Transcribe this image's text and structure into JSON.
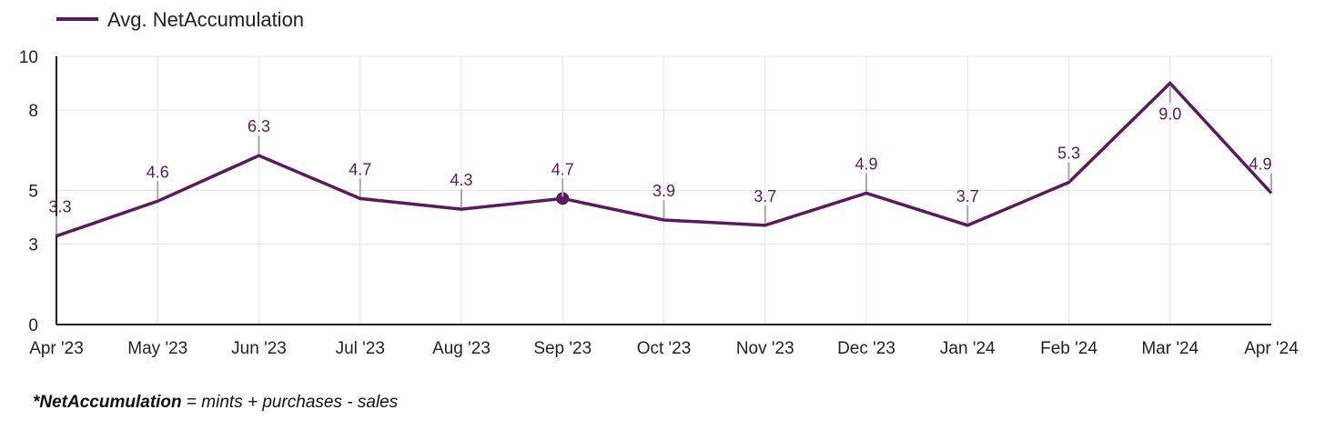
{
  "chart_data": {
    "type": "line",
    "categories": [
      "Apr '23",
      "May '23",
      "Jun '23",
      "Jul '23",
      "Aug '23",
      "Sep '23",
      "Oct '23",
      "Nov '23",
      "Dec '23",
      "Jan '24",
      "Feb '24",
      "Mar '24",
      "Apr '24"
    ],
    "series": [
      {
        "name": "Avg. NetAccumulation",
        "values": [
          3.3,
          4.6,
          6.3,
          4.7,
          4.3,
          4.7,
          3.9,
          3.7,
          4.9,
          3.7,
          5.3,
          9.0,
          4.9
        ],
        "labels": [
          "3.3",
          "4.6",
          "6.3",
          "4.7",
          "4.3",
          "4.7",
          "3.9",
          "3.7",
          "4.9",
          "3.7",
          "5.3",
          "9.0",
          "4.9"
        ],
        "color": "#5c1a5e"
      }
    ],
    "yticks": [
      0,
      3,
      5,
      8,
      10
    ],
    "ytick_labels": [
      "0",
      "3",
      "5",
      "8",
      "10"
    ],
    "ylim": [
      0,
      10
    ],
    "grid": true,
    "legend": "top-left",
    "highlighted_point": "Sep '23"
  },
  "footnote": {
    "term": "*NetAccumulation",
    "definition": " = mints + purchases - sales"
  }
}
